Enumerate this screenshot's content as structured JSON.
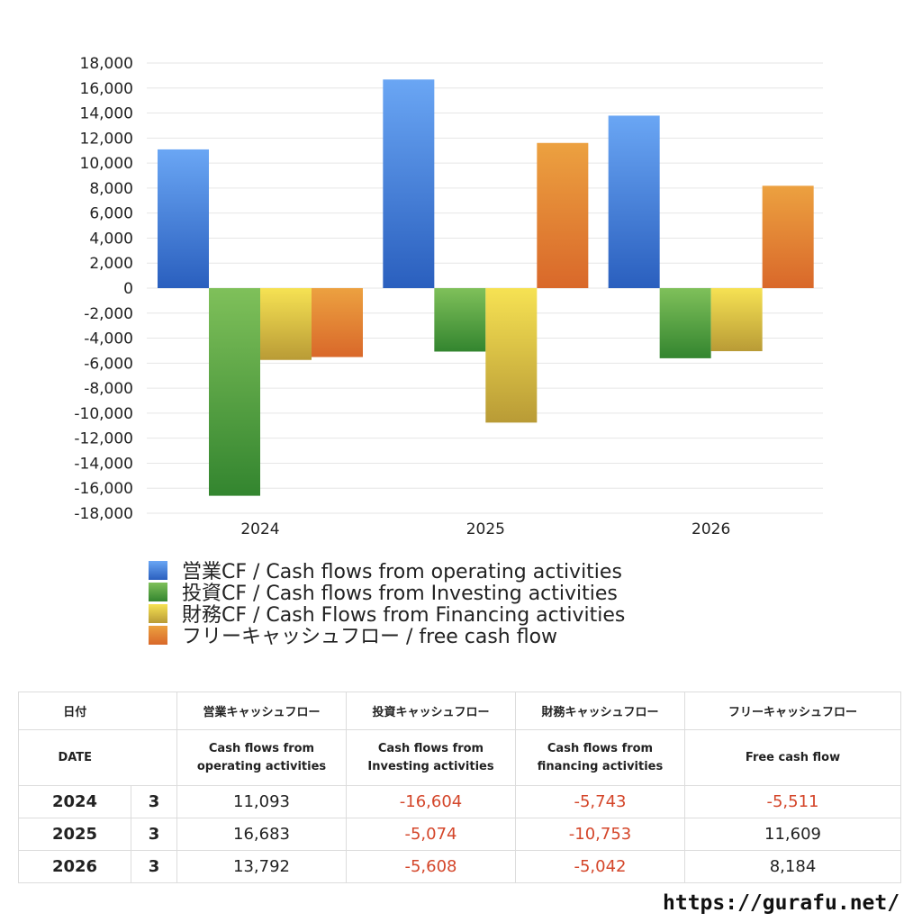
{
  "chart_data": {
    "type": "bar",
    "categories": [
      "2024",
      "2025",
      "2026"
    ],
    "ylim": [
      -18000,
      18000
    ],
    "yticks": [
      18000,
      16000,
      14000,
      12000,
      10000,
      8000,
      6000,
      4000,
      2000,
      0,
      -2000,
      -4000,
      -6000,
      -8000,
      -10000,
      -12000,
      -14000,
      -16000,
      -18000
    ],
    "ytick_labels": [
      "18,000",
      "16,000",
      "14,000",
      "12,000",
      "10,000",
      "8,000",
      "6,000",
      "4,000",
      "2,000",
      "0",
      "-2,000",
      "-4,000",
      "-6,000",
      "-8,000",
      "-10,000",
      "-12,000",
      "-14,000",
      "-16,000",
      "-18,000"
    ],
    "grid": true,
    "legend_position": "bottom",
    "series": [
      {
        "name": "営業CF / Cash flows from operating activities",
        "values": [
          11093,
          16683,
          13792
        ],
        "color_top": "#6aa6f4",
        "color_bottom": "#2a5fbe"
      },
      {
        "name": "投資CF / Cash flows from Investing activities",
        "values": [
          -16604,
          -5074,
          -5608
        ],
        "color_top": "#7fc05a",
        "color_bottom": "#33852f"
      },
      {
        "name": "財務CF / Cash Flows from Financing activities",
        "values": [
          -5743,
          -10753,
          -5042
        ],
        "color_top": "#f6e253",
        "color_bottom": "#b99b36"
      },
      {
        "name": "フリーキャッシュフロー / free cash flow",
        "values": [
          -5511,
          11609,
          8184
        ],
        "color_top": "#eca140",
        "color_bottom": "#d9682a"
      }
    ]
  },
  "table": {
    "header_jp": {
      "date": "日付",
      "operating": "営業キャッシュフロー",
      "investing": "投資キャッシュフロー",
      "financing": "財務キャッシュフロー",
      "free": "フリーキャッシュフロー"
    },
    "header_en": {
      "date": "DATE",
      "operating_1": "Cash flows from",
      "operating_2": "operating activities",
      "investing_1": "Cash flows from",
      "investing_2": "Investing activities",
      "financing_1": "Cash flows from",
      "financing_2": "financing activities",
      "free": "Free cash flow"
    },
    "rows": [
      {
        "year": "2024",
        "month": "3",
        "operating": "11,093",
        "investing": "-16,604",
        "financing": "-5,743",
        "free": "-5,511"
      },
      {
        "year": "2025",
        "month": "3",
        "operating": "16,683",
        "investing": "-5,074",
        "financing": "-10,753",
        "free": "11,609"
      },
      {
        "year": "2026",
        "month": "3",
        "operating": "13,792",
        "investing": "-5,608",
        "financing": "-5,042",
        "free": "8,184"
      }
    ]
  },
  "footer": {
    "site": "https://gurafu.net/"
  }
}
